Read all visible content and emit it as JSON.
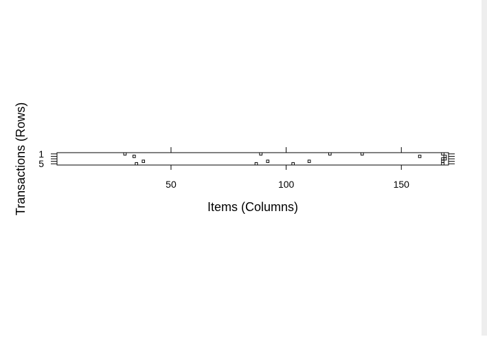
{
  "chart_data": {
    "type": "scatter",
    "title": "",
    "xlabel": "Items (Columns)",
    "ylabel": "Transactions (Rows)",
    "xlim": [
      0.5,
      170.5
    ],
    "ylim": [
      0.5,
      5.5
    ],
    "x_ticks": [
      {
        "value": 50,
        "label": "50"
      },
      {
        "value": 100,
        "label": "100"
      },
      {
        "value": 150,
        "label": "150"
      }
    ],
    "y_ticks": [
      {
        "value": 1,
        "label": "1"
      },
      {
        "value": 5,
        "label": "5"
      }
    ],
    "grid": false,
    "legend": "none",
    "points": [
      {
        "x": 30,
        "y": 1
      },
      {
        "x": 89,
        "y": 1
      },
      {
        "x": 119,
        "y": 1
      },
      {
        "x": 133,
        "y": 1
      },
      {
        "x": 168,
        "y": 1
      },
      {
        "x": 34,
        "y": 2
      },
      {
        "x": 158,
        "y": 2
      },
      {
        "x": 169,
        "y": 2
      },
      {
        "x": 168,
        "y": 3
      },
      {
        "x": 169,
        "y": 3
      },
      {
        "x": 38,
        "y": 4
      },
      {
        "x": 92,
        "y": 4
      },
      {
        "x": 110,
        "y": 4
      },
      {
        "x": 168,
        "y": 4
      },
      {
        "x": 35,
        "y": 5
      },
      {
        "x": 87,
        "y": 5
      },
      {
        "x": 103,
        "y": 5
      },
      {
        "x": 168,
        "y": 5
      }
    ],
    "colors": {
      "marker": "#000000",
      "axis": "#000000",
      "background": "#ffffff"
    }
  }
}
